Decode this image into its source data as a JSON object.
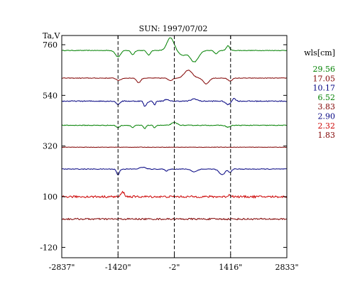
{
  "chart_data": {
    "type": "line",
    "title": "SUN: 1997/07/02",
    "ylabel": "Ta,V",
    "xlabel": "",
    "x_ticks": [
      {
        "value": -2837,
        "label": "-2837\""
      },
      {
        "value": -1420,
        "label": "-1420\""
      },
      {
        "value": -2,
        "label": "-2\""
      },
      {
        "value": 1416,
        "label": "1416\""
      },
      {
        "value": 2833,
        "label": "2833\""
      }
    ],
    "y_ticks": [
      760,
      540,
      320,
      100,
      -120
    ],
    "xlim": [
      -2837,
      2833
    ],
    "ylim": [
      -165,
      800
    ],
    "vlines": [
      -1420,
      -2,
      1416
    ],
    "grid": false,
    "legend_title": "wls[cm]",
    "legend_position": "right",
    "series": [
      {
        "name": "29.56",
        "color": "#008000",
        "baseline": 735,
        "features": [
          [
            -1420,
            -28,
            90
          ],
          [
            -1050,
            -18,
            60
          ],
          [
            -650,
            -20,
            60
          ],
          [
            -100,
            55,
            120
          ],
          [
            200,
            -20,
            120
          ],
          [
            500,
            -50,
            150
          ],
          [
            1050,
            -15,
            60
          ],
          [
            1350,
            20,
            60
          ]
        ]
      },
      {
        "name": "17.05",
        "color": "#800000",
        "baseline": 615,
        "features": [
          [
            -1400,
            -10,
            80
          ],
          [
            -900,
            -20,
            70
          ],
          [
            -100,
            -10,
            80
          ],
          [
            350,
            35,
            140
          ],
          [
            800,
            -25,
            100
          ],
          [
            1400,
            -12,
            80
          ]
        ]
      },
      {
        "name": "10.17",
        "color": "#000080",
        "baseline": 515,
        "features": [
          [
            -1420,
            -15,
            60
          ],
          [
            -700,
            -8,
            50
          ],
          [
            -750,
            -20,
            40
          ],
          [
            -500,
            -15,
            40
          ],
          [
            -200,
            8,
            60
          ],
          [
            500,
            10,
            100
          ],
          [
            1350,
            -15,
            80
          ],
          [
            1500,
            12,
            60
          ]
        ]
      },
      {
        "name": "6.52",
        "color": "#008000",
        "baseline": 410,
        "features": [
          [
            -1420,
            -10,
            60
          ],
          [
            -1050,
            -10,
            50
          ],
          [
            -750,
            -15,
            40
          ],
          [
            -500,
            -10,
            40
          ],
          [
            0,
            12,
            100
          ],
          [
            1350,
            -8,
            80
          ]
        ]
      },
      {
        "name": "3.83",
        "color": "#800000",
        "baseline": 315,
        "features": []
      },
      {
        "name": "2.90",
        "color": "#000080",
        "baseline": 220,
        "features": [
          [
            -1420,
            -25,
            50
          ],
          [
            -800,
            8,
            100
          ],
          [
            -200,
            -8,
            60
          ],
          [
            500,
            -12,
            100
          ],
          [
            1200,
            -25,
            100
          ],
          [
            1400,
            -15,
            50
          ]
        ]
      },
      {
        "name": "2.32",
        "color": "#cc0000",
        "baseline": 100,
        "features": [
          [
            -1300,
            20,
            60
          ],
          [
            1400,
            8,
            60
          ]
        ]
      },
      {
        "name": "1.83",
        "color": "#800000",
        "baseline": 3,
        "features": []
      }
    ]
  }
}
